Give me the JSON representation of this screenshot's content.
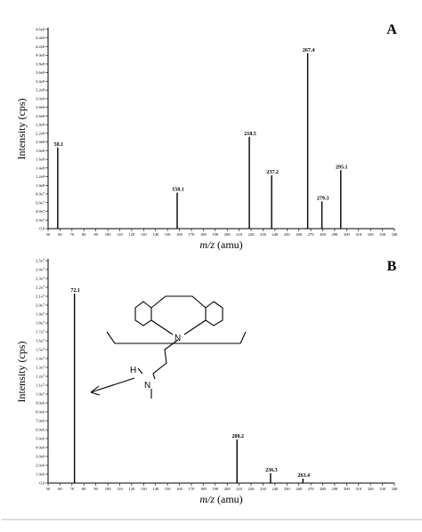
{
  "chart_data": [
    {
      "type": "bar",
      "panel_label": "A",
      "xlabel_italic": "m/z",
      "xlabel_rest": " (amu)",
      "ylabel": "Intensity (cps)",
      "xlim": [
        50,
        340
      ],
      "ylim": [
        0,
        460000000.0
      ],
      "xticks": [
        "50",
        "60",
        "70",
        "80",
        "90",
        "100",
        "110",
        "120",
        "130",
        "140",
        "150",
        "160",
        "170",
        "180",
        "190",
        "200",
        "210",
        "220",
        "230",
        "240",
        "250",
        "260",
        "270",
        "280",
        "290",
        "300",
        "310",
        "320",
        "330",
        "340"
      ],
      "yticks": [
        "0.0",
        "2.0e7",
        "4.0e7",
        "6.0e7",
        "8.0e7",
        "1.0e8",
        "1.2e8",
        "1.4e8",
        "1.6e8",
        "1.8e8",
        "2.0e8",
        "2.2e8",
        "2.4e8",
        "2.6e8",
        "2.8e8",
        "3.0e8",
        "3.2e8",
        "3.4e8",
        "3.6e8",
        "3.8e8",
        "4.0e8",
        "4.2e8",
        "4.4e8",
        "4.6e8"
      ],
      "peaks": [
        {
          "x": 58.1,
          "y": 187000000.0,
          "label": "58.1"
        },
        {
          "x": 158.1,
          "y": 83000000.0,
          "label": "158.1"
        },
        {
          "x": 218.5,
          "y": 212000000.0,
          "label": "218.5"
        },
        {
          "x": 237.2,
          "y": 123000000.0,
          "label": "237.2"
        },
        {
          "x": 267.4,
          "y": 405000000.0,
          "label": "267.4"
        },
        {
          "x": 279.3,
          "y": 63000000.0,
          "label": "279.3"
        },
        {
          "x": 295.1,
          "y": 135000000.0,
          "label": "295.1"
        }
      ]
    },
    {
      "type": "bar",
      "panel_label": "B",
      "xlabel_italic": "m/z",
      "xlabel_rest": " (amu)",
      "ylabel": "Intensity (cps)",
      "xlim": [
        50,
        340
      ],
      "ylim": [
        0,
        25000000.0
      ],
      "xticks": [
        "50",
        "60",
        "70",
        "80",
        "90",
        "100",
        "110",
        "120",
        "130",
        "140",
        "150",
        "160",
        "170",
        "180",
        "190",
        "200",
        "210",
        "220",
        "230",
        "240",
        "250",
        "260",
        "270",
        "280",
        "290",
        "300",
        "310",
        "320",
        "330",
        "340"
      ],
      "yticks": [
        "0.0",
        "1.0e6",
        "2.0e6",
        "3.0e6",
        "4.0e6",
        "5.0e6",
        "6.0e6",
        "7.0e6",
        "8.0e6",
        "9.0e6",
        "1.0e7",
        "1.1e7",
        "1.2e7",
        "1.3e7",
        "1.4e7",
        "1.5e7",
        "1.6e7",
        "1.7e7",
        "1.8e7",
        "1.9e7",
        "2.0e7",
        "2.1e7",
        "2.2e7",
        "2.3e7",
        "2.4e7",
        "2.5e7"
      ],
      "peaks": [
        {
          "x": 72.1,
          "y": 21300000.0,
          "label": "72.1"
        },
        {
          "x": 208.2,
          "y": 4900000.0,
          "label": "208.2"
        },
        {
          "x": 236.3,
          "y": 1100000.0,
          "label": "236.3"
        },
        {
          "x": 263.4,
          "y": 500000.0,
          "label": "263.4"
        }
      ]
    }
  ],
  "structure": {
    "atom_n_ring": "N",
    "atom_n_chain": "N",
    "atom_h": "H"
  }
}
